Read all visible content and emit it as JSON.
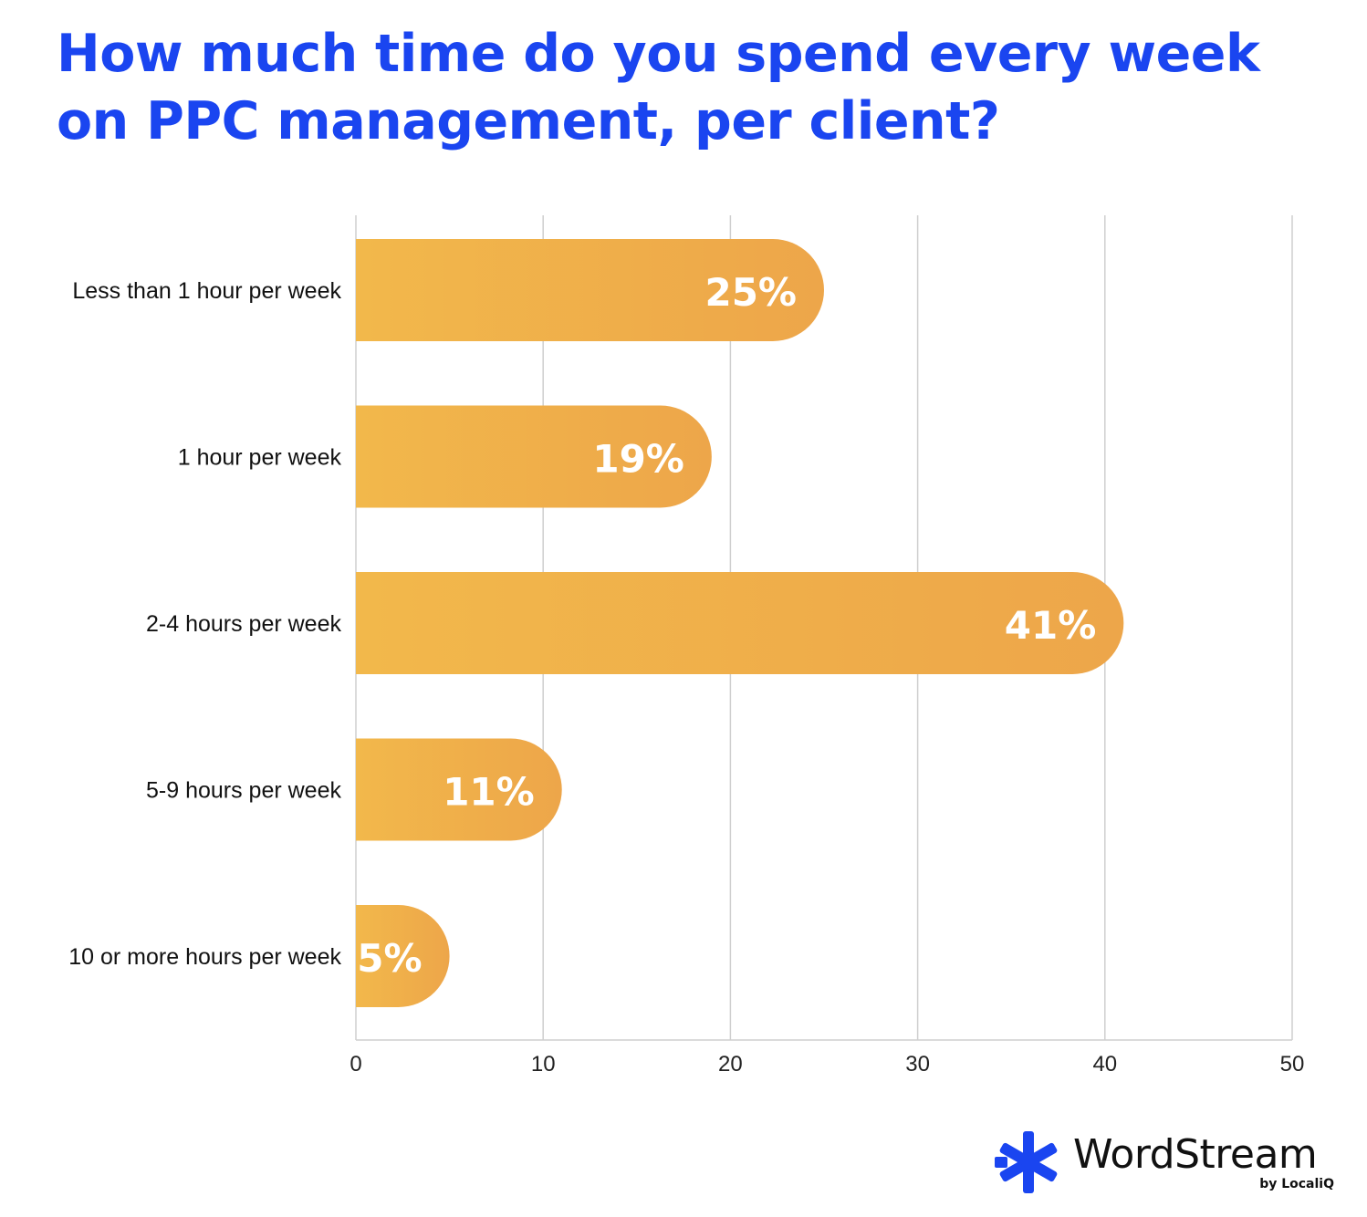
{
  "title": "How much time do you spend every week on PPC management, per client?",
  "chart_data": {
    "type": "bar",
    "orientation": "horizontal",
    "categories": [
      "Less than 1 hour per week",
      "1 hour per week",
      "2-4 hours per week",
      "5-9 hours per week",
      "10 or more hours per week"
    ],
    "values": [
      25,
      19,
      41,
      11,
      5
    ],
    "value_labels": [
      "25%",
      "19%",
      "41%",
      "11%",
      "5%"
    ],
    "xlim": [
      0,
      50
    ],
    "xticks": [
      0,
      10,
      20,
      30,
      40,
      50
    ],
    "grid": "vertical",
    "bar_color": "#f2b84b",
    "bar_color_end": "#eda64a"
  },
  "brand": {
    "name": "WordStream",
    "sub": "by LocaliQ",
    "icon": "wordstream-asterisk-logo",
    "color": "#1a45f0"
  }
}
